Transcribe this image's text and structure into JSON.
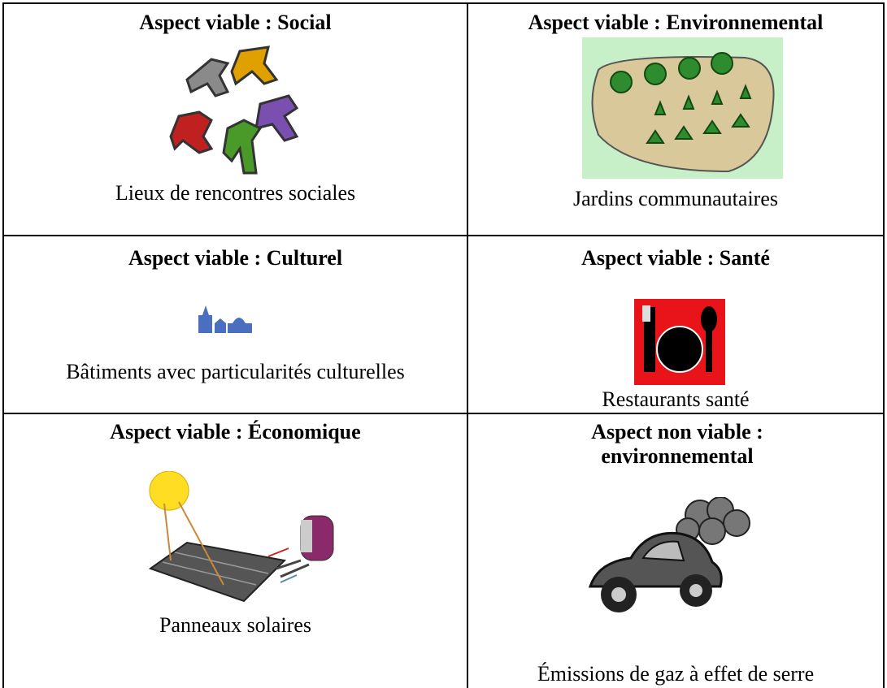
{
  "table": {
    "rows": [
      [
        {
          "title": "Aspect viable : Social",
          "caption": "Lieux de rencontres sociales"
        },
        {
          "title": "Aspect viable : Environnemental",
          "caption": "Jardins communautaires"
        }
      ],
      [
        {
          "title": "Aspect viable : Culturel",
          "caption": "Bâtiments avec particularités culturelles"
        },
        {
          "title": "Aspect viable : Santé",
          "caption": "Restaurants santé"
        }
      ],
      [
        {
          "title": "Aspect viable : Économique",
          "caption": "Panneaux solaires"
        },
        {
          "title": "Aspect non viable : environnemental",
          "caption": "Émissions de gaz à effet de serre"
        }
      ]
    ]
  }
}
